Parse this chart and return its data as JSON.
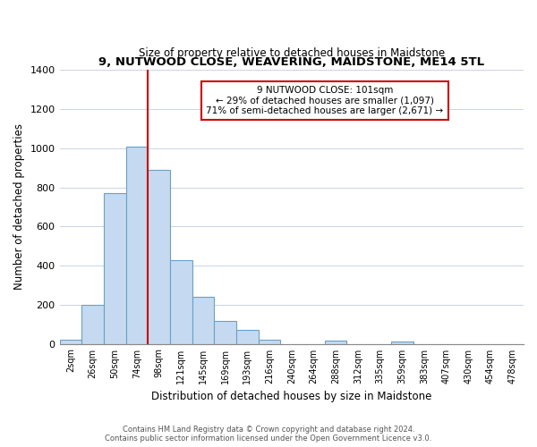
{
  "title": "9, NUTWOOD CLOSE, WEAVERING, MAIDSTONE, ME14 5TL",
  "subtitle": "Size of property relative to detached houses in Maidstone",
  "xlabel": "Distribution of detached houses by size in Maidstone",
  "ylabel": "Number of detached properties",
  "bar_labels": [
    "2sqm",
    "26sqm",
    "50sqm",
    "74sqm",
    "98sqm",
    "121sqm",
    "145sqm",
    "169sqm",
    "193sqm",
    "216sqm",
    "240sqm",
    "264sqm",
    "288sqm",
    "312sqm",
    "335sqm",
    "359sqm",
    "383sqm",
    "407sqm",
    "430sqm",
    "454sqm",
    "478sqm"
  ],
  "bar_heights": [
    20,
    200,
    770,
    1010,
    890,
    430,
    240,
    115,
    70,
    20,
    0,
    0,
    15,
    0,
    0,
    10,
    0,
    0,
    0,
    0,
    0
  ],
  "bar_color": "#c5daf0",
  "bar_edge_color": "#6aa0c8",
  "vline_color": "#cc0000",
  "vline_index": 3.5,
  "annotation_title": "9 NUTWOOD CLOSE: 101sqm",
  "annotation_line1": "← 29% of detached houses are smaller (1,097)",
  "annotation_line2": "71% of semi-detached houses are larger (2,671) →",
  "annotation_box_color": "#ffffff",
  "annotation_border_color": "#cc0000",
  "ylim": [
    0,
    1400
  ],
  "yticks": [
    0,
    200,
    400,
    600,
    800,
    1000,
    1200,
    1400
  ],
  "footer_line1": "Contains HM Land Registry data © Crown copyright and database right 2024.",
  "footer_line2": "Contains public sector information licensed under the Open Government Licence v3.0.",
  "bg_color": "#ffffff",
  "grid_color": "#c8d4e4"
}
